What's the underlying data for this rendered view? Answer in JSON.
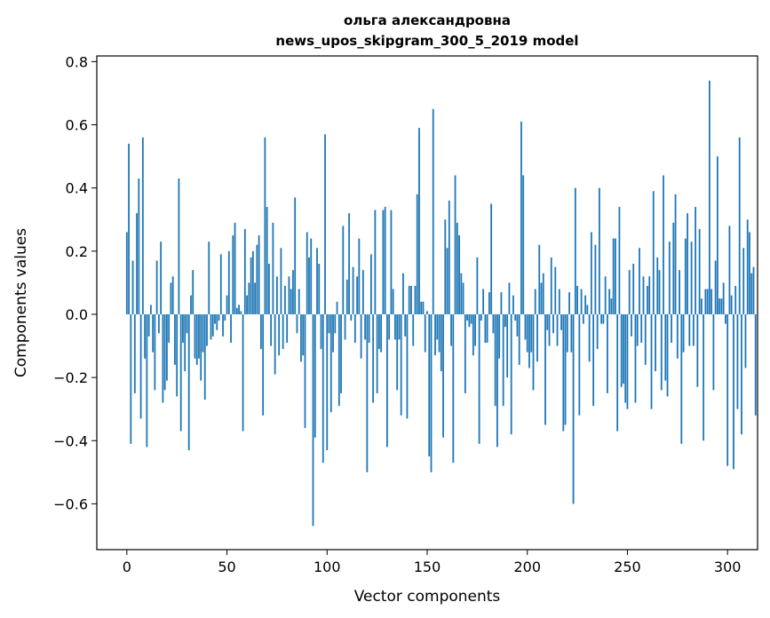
{
  "chart_data": {
    "type": "bar",
    "title_line1": "ольга александровна",
    "title_line2": "news_upos_skipgram_300_5_2019 model",
    "xlabel": "Vector components",
    "ylabel": "Components values",
    "xlim": [
      -15,
      315
    ],
    "ylim": [
      -0.745,
      0.818
    ],
    "xticks": [
      0,
      50,
      100,
      150,
      200,
      250,
      300
    ],
    "yticks": [
      -0.6,
      -0.4,
      -0.2,
      0.0,
      0.2,
      0.4,
      0.6,
      0.8
    ],
    "ytick_labels": [
      "−0.6",
      "−0.4",
      "−0.2",
      "0.0",
      "0.2",
      "0.4",
      "0.6",
      "0.8"
    ],
    "bar_color": "#1f77b4",
    "values": [
      0.26,
      0.54,
      -0.41,
      0.17,
      -0.25,
      0.32,
      0.43,
      -0.33,
      0.56,
      -0.14,
      -0.42,
      -0.07,
      0.03,
      -0.12,
      -0.24,
      0.17,
      -0.06,
      0.23,
      -0.28,
      -0.24,
      -0.21,
      -0.09,
      0.1,
      0.12,
      -0.16,
      -0.26,
      0.43,
      -0.37,
      -0.09,
      -0.18,
      -0.06,
      -0.43,
      0.06,
      0.14,
      -0.14,
      -0.16,
      -0.14,
      -0.21,
      -0.12,
      -0.27,
      -0.1,
      0.23,
      -0.08,
      -0.07,
      -0.03,
      -0.05,
      -0.02,
      0.19,
      -0.07,
      -0.02,
      0.06,
      0.2,
      -0.09,
      0.25,
      0.29,
      0.02,
      0.03,
      0.01,
      -0.37,
      0.27,
      0.06,
      0.1,
      0.18,
      0.2,
      0.1,
      0.22,
      0.25,
      -0.11,
      -0.32,
      0.56,
      0.34,
      0.16,
      -0.1,
      0.29,
      -0.19,
      0.12,
      -0.13,
      0.21,
      -0.11,
      0.09,
      -0.09,
      0.12,
      0.08,
      0.14,
      0.37,
      -0.06,
      0.08,
      -0.15,
      -0.13,
      -0.36,
      0.26,
      0.18,
      0.24,
      -0.67,
      -0.39,
      0.21,
      0.16,
      -0.11,
      -0.47,
      0.57,
      -0.43,
      -0.06,
      -0.31,
      -0.12,
      -0.06,
      0.04,
      -0.29,
      -0.25,
      0.28,
      -0.08,
      0.11,
      0.32,
      -0.02,
      0.15,
      -0.09,
      0.12,
      0.24,
      -0.14,
      0.14,
      -0.08,
      -0.5,
      -0.09,
      0.19,
      -0.28,
      0.33,
      -0.25,
      -0.11,
      -0.12,
      0.33,
      0.34,
      -0.42,
      -0.08,
      0.33,
      0.08,
      -0.08,
      -0.24,
      -0.08,
      -0.32,
      0.13,
      -0.07,
      -0.33,
      0.09,
      0.09,
      -0.1,
      0.09,
      0.38,
      0.59,
      0.04,
      0.04,
      -0.12,
      0.01,
      -0.45,
      -0.5,
      0.65,
      -0.13,
      -0.08,
      -0.12,
      -0.18,
      -0.39,
      0.3,
      0.21,
      0.36,
      -0.1,
      -0.47,
      0.44,
      0.29,
      0.25,
      0.13,
      0.1,
      -0.25,
      -0.02,
      -0.04,
      -0.03,
      -0.13,
      -0.1,
      0.18,
      -0.41,
      -0.02,
      0.08,
      -0.09,
      -0.09,
      0.07,
      0.35,
      -0.06,
      -0.29,
      -0.42,
      -0.14,
      0.07,
      -0.29,
      -0.04,
      -0.2,
      0.1,
      -0.38,
      0.06,
      -0.02,
      -0.07,
      -0.16,
      0.61,
      0.44,
      -0.08,
      -0.12,
      -0.17,
      -0.12,
      -0.24,
      0.08,
      -0.15,
      0.22,
      0.1,
      0.13,
      -0.35,
      -0.05,
      -0.1,
      0.18,
      -0.06,
      0.15,
      -0.1,
      0.08,
      -0.05,
      -0.37,
      -0.35,
      -0.12,
      0.07,
      -0.12,
      -0.6,
      0.4,
      0.09,
      -0.32,
      0.08,
      -0.03,
      0.06,
      0.03,
      -0.15,
      0.26,
      -0.29,
      0.22,
      -0.11,
      0.4,
      -0.03,
      -0.03,
      0.12,
      -0.25,
      0.08,
      0.05,
      0.24,
      0.24,
      -0.37,
      0.34,
      -0.23,
      -0.22,
      -0.28,
      -0.3,
      0.14,
      -0.07,
      0.16,
      -0.28,
      -0.1,
      0.21,
      -0.09,
      0.12,
      -0.16,
      0.09,
      0.12,
      -0.3,
      0.39,
      -0.18,
      0.18,
      0.14,
      -0.24,
      0.44,
      -0.21,
      -0.26,
      0.23,
      -0.09,
      0.29,
      0.38,
      -0.14,
      0.14,
      -0.41,
      -0.12,
      0.24,
      0.32,
      -0.1,
      0.23,
      -0.1,
      0.34,
      -0.23,
      0.27,
      0.05,
      -0.4,
      0.08,
      0.08,
      0.74,
      0.08,
      -0.24,
      0.17,
      0.5,
      0.05,
      0.05,
      0.1,
      -0.03,
      -0.48,
      0.28,
      0.06,
      -0.49,
      0.09,
      -0.3,
      0.56,
      -0.38,
      0.21,
      -0.17,
      0.3,
      0.26,
      0.13,
      0.15,
      -0.32
    ]
  }
}
